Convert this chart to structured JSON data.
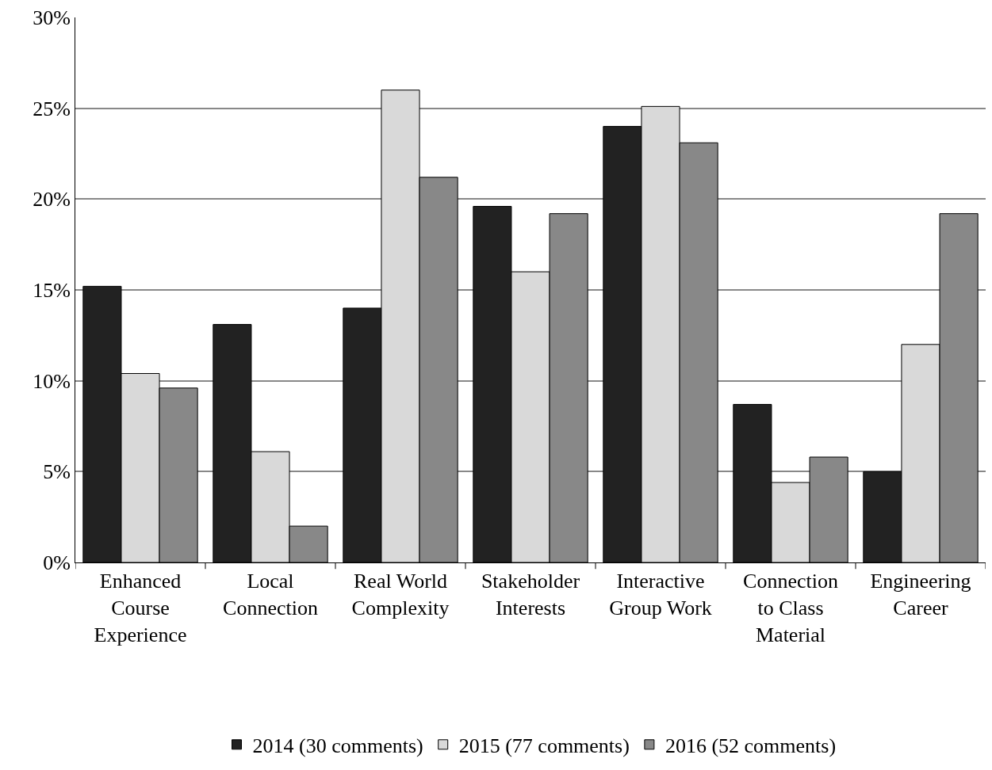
{
  "chart_data": {
    "type": "bar",
    "categories": [
      "Enhanced Course Experience",
      "Local Connection",
      "Real World Complexity",
      "Stakeholder Interests",
      "Interactive Group Work",
      "Connection to Class Material",
      "Engineering Career"
    ],
    "series": [
      {
        "name": "2014 (30 comments)",
        "color": "#222222",
        "values": [
          15.2,
          13.1,
          14.0,
          19.6,
          24.0,
          8.7,
          5.0
        ]
      },
      {
        "name": "2015 (77 comments)",
        "color": "#d9d9d9",
        "values": [
          10.4,
          6.1,
          26.0,
          16.0,
          25.1,
          4.4,
          12.0
        ]
      },
      {
        "name": "2016 (52 comments)",
        "color": "#888888",
        "values": [
          9.6,
          2.0,
          21.2,
          19.2,
          23.1,
          5.8,
          19.2
        ]
      }
    ],
    "ylim": [
      0,
      30
    ],
    "yticks": [
      {
        "value": 0,
        "label": "0%"
      },
      {
        "value": 5,
        "label": "5%"
      },
      {
        "value": 10,
        "label": "10%"
      },
      {
        "value": 15,
        "label": "15%"
      },
      {
        "value": 20,
        "label": "20%"
      },
      {
        "value": 25,
        "label": "25%"
      },
      {
        "value": 30,
        "label": "30%"
      }
    ],
    "grid": "y",
    "legend": "bottom"
  }
}
